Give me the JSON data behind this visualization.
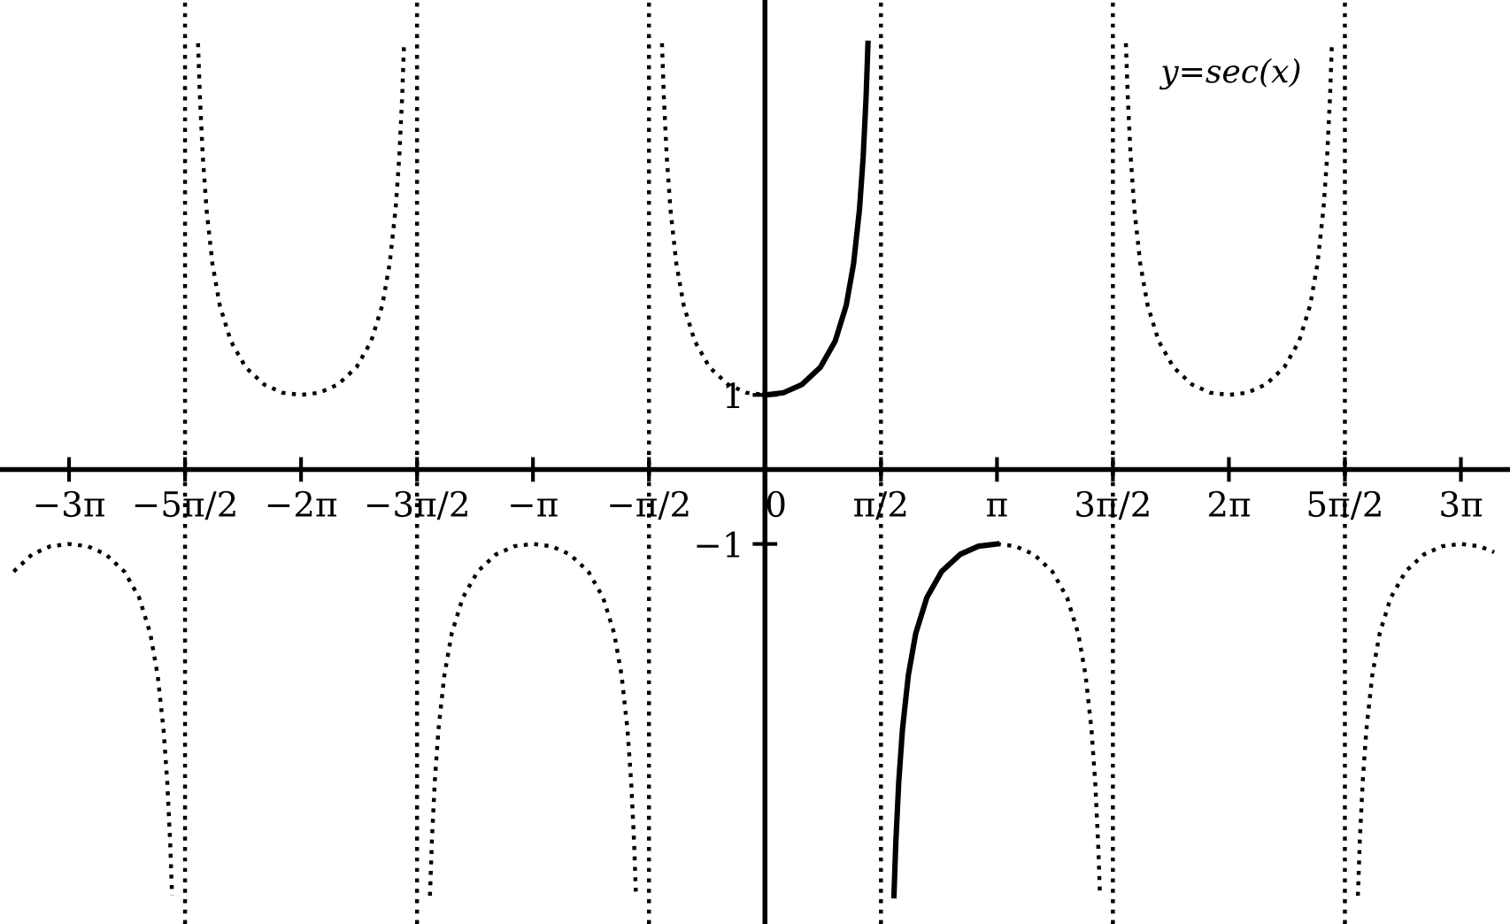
{
  "chart_data": {
    "type": "line",
    "annotations": [
      "y=sec(x)"
    ],
    "xlim": [
      -10.36,
      10.09
    ],
    "ylim": [
      -6.1,
      6.3
    ],
    "xticks": [
      {
        "value": -9.425,
        "label": "−3π"
      },
      {
        "value": -7.854,
        "label": "−5π/2"
      },
      {
        "value": -6.283,
        "label": "−2π"
      },
      {
        "value": -4.712,
        "label": "−3π/2"
      },
      {
        "value": -3.142,
        "label": "−π"
      },
      {
        "value": -1.571,
        "label": "−π/2"
      },
      {
        "value": 0,
        "label": "0"
      },
      {
        "value": 1.571,
        "label": "π/2"
      },
      {
        "value": 3.142,
        "label": "π"
      },
      {
        "value": 4.712,
        "label": "3π/2"
      },
      {
        "value": 6.283,
        "label": "2π"
      },
      {
        "value": 7.854,
        "label": "5π/2"
      },
      {
        "value": 9.425,
        "label": "3π"
      }
    ],
    "yticks": [
      {
        "value": 1,
        "label": "1"
      },
      {
        "value": -1,
        "label": "−1"
      }
    ],
    "grid": false,
    "marker": "none",
    "ref_lines": [
      {
        "axis": "x",
        "value": -7.854,
        "color": "#000000",
        "line_style": "dotted"
      },
      {
        "axis": "x",
        "value": -4.712,
        "color": "#000000",
        "line_style": "dotted"
      },
      {
        "axis": "x",
        "value": -1.571,
        "color": "#000000",
        "line_style": "dotted"
      },
      {
        "axis": "x",
        "value": 1.571,
        "color": "#000000",
        "line_style": "dotted"
      },
      {
        "axis": "x",
        "value": 4.712,
        "color": "#000000",
        "line_style": "dotted"
      },
      {
        "axis": "x",
        "value": 7.854,
        "color": "#000000",
        "line_style": "dotted"
      }
    ],
    "series": [
      {
        "color": "#000000",
        "line_style": "dotted",
        "x": [
          -10.175,
          -9.925,
          -9.675,
          -9.425,
          -9.175,
          -8.925,
          -8.675,
          -8.475,
          -8.325,
          -8.225,
          -8.145,
          -8.095,
          -8.055,
          -8.03
        ],
        "values": [
          -1.37,
          -1.14,
          -1.03,
          -1,
          -1.03,
          -1.14,
          -1.37,
          -1.72,
          -2.2,
          -2.76,
          -3.49,
          -4.19,
          -5.01,
          -5.72
        ]
      },
      {
        "color": "#000000",
        "line_style": "dotted",
        "x": [
          -7.678,
          -7.653,
          -7.613,
          -7.563,
          -7.483,
          -7.383,
          -7.233,
          -7.033,
          -6.783,
          -6.533,
          -6.283,
          -6.033,
          -5.783,
          -5.533,
          -5.333,
          -5.183,
          -5.083,
          -5.003,
          -4.953,
          -4.913,
          -4.888
        ],
        "values": [
          5.72,
          5.01,
          4.19,
          3.49,
          2.76,
          2.2,
          1.72,
          1.37,
          1.14,
          1.03,
          1,
          1.03,
          1.14,
          1.37,
          1.72,
          2.2,
          2.76,
          3.49,
          4.19,
          5.01,
          5.72
        ]
      },
      {
        "color": "#000000",
        "line_style": "dotted",
        "x": [
          -4.537,
          -4.512,
          -4.472,
          -4.422,
          -4.342,
          -4.242,
          -4.092,
          -3.892,
          -3.642,
          -3.392,
          -3.142,
          -2.892,
          -2.642,
          -2.392,
          -2.192,
          -2.042,
          -1.942,
          -1.862,
          -1.812,
          -1.772,
          -1.747
        ],
        "values": [
          -5.72,
          -5.01,
          -4.19,
          -3.49,
          -2.76,
          -2.2,
          -1.72,
          -1.37,
          -1.14,
          -1.03,
          -1,
          -1.03,
          -1.14,
          -1.37,
          -1.72,
          -2.2,
          -2.76,
          -3.49,
          -4.19,
          -5.01,
          -5.72
        ]
      },
      {
        "color": "#000000",
        "line_style": "dotted",
        "x": [
          -1.395,
          -1.37,
          -1.33,
          -1.28,
          -1.2,
          -1.1,
          -0.95,
          -0.75,
          -0.5,
          -0.25,
          0
        ],
        "values": [
          5.72,
          5.01,
          4.19,
          3.49,
          2.76,
          2.2,
          1.72,
          1.37,
          1.14,
          1.03,
          1
        ]
      },
      {
        "color": "#000000",
        "line_style": "solid",
        "x": [
          0,
          0.25,
          0.5,
          0.75,
          0.95,
          1.1,
          1.2,
          1.28,
          1.33,
          1.37,
          1.395
        ],
        "values": [
          1,
          1.03,
          1.14,
          1.37,
          1.72,
          2.2,
          2.76,
          3.49,
          4.19,
          5.01,
          5.72
        ]
      },
      {
        "color": "#000000",
        "line_style": "solid",
        "x": [
          1.747,
          1.772,
          1.812,
          1.862,
          1.942,
          2.042,
          2.192,
          2.392,
          2.642,
          2.892,
          3.142
        ],
        "values": [
          -5.72,
          -5.01,
          -4.19,
          -3.49,
          -2.76,
          -2.2,
          -1.72,
          -1.37,
          -1.14,
          -1.03,
          -1
        ]
      },
      {
        "color": "#000000",
        "line_style": "dotted",
        "x": [
          3.142,
          3.392,
          3.642,
          3.892,
          4.092,
          4.242,
          4.342,
          4.422,
          4.472,
          4.512,
          4.537
        ],
        "values": [
          -1,
          -1.03,
          -1.14,
          -1.37,
          -1.72,
          -2.2,
          -2.76,
          -3.49,
          -4.19,
          -5.01,
          -5.72
        ]
      },
      {
        "color": "#000000",
        "line_style": "dotted",
        "x": [
          4.888,
          4.913,
          4.953,
          5.003,
          5.083,
          5.183,
          5.333,
          5.533,
          5.783,
          6.033,
          6.283,
          6.533,
          6.783,
          7.033,
          7.233,
          7.383,
          7.483,
          7.563,
          7.613,
          7.653,
          7.678
        ],
        "values": [
          5.72,
          5.01,
          4.19,
          3.49,
          2.76,
          2.2,
          1.72,
          1.37,
          1.14,
          1.03,
          1,
          1.03,
          1.14,
          1.37,
          1.72,
          2.2,
          2.76,
          3.49,
          4.19,
          5.01,
          5.72
        ]
      },
      {
        "color": "#000000",
        "line_style": "dotted",
        "x": [
          8.03,
          8.055,
          8.095,
          8.145,
          8.225,
          8.325,
          8.475,
          8.675,
          8.925,
          9.175,
          9.425,
          9.675,
          9.875
        ],
        "values": [
          -5.72,
          -5.01,
          -4.19,
          -3.49,
          -2.76,
          -2.2,
          -1.72,
          -1.37,
          -1.14,
          -1.03,
          -1,
          -1.03,
          -1.11
        ]
      }
    ]
  }
}
